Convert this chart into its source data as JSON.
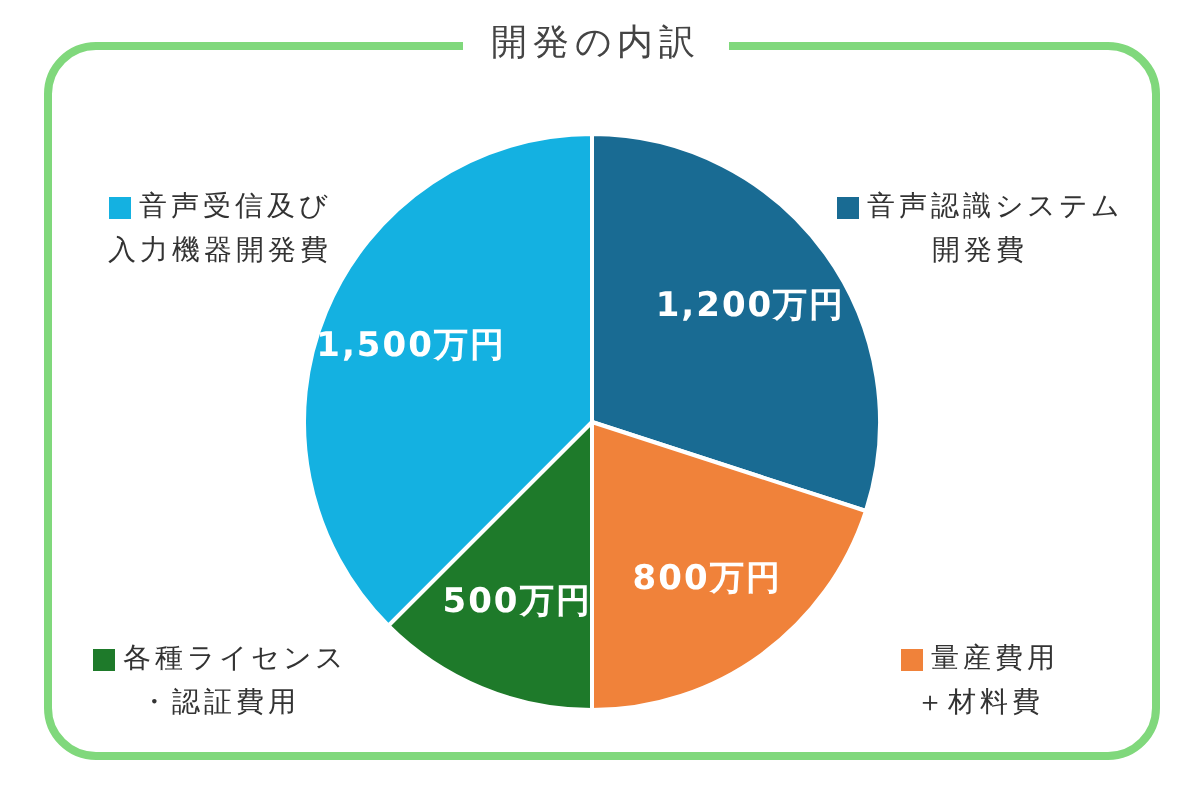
{
  "chart_data": {
    "type": "pie",
    "title": "開発の内訳",
    "categories": [
      "音声認識システム開発費",
      "量産費用＋材料費",
      "各種ライセンス・認証費用",
      "音声受信及び入力機器開発費"
    ],
    "values": [
      1200,
      800,
      500,
      1500
    ],
    "colors": [
      "#196b93",
      "#f0823a",
      "#1e7a2a",
      "#14b1e1"
    ],
    "value_labels": [
      "1,200万円",
      "800万円",
      "500万円",
      "1,500万円"
    ],
    "legend": "bottom right"
  }
}
